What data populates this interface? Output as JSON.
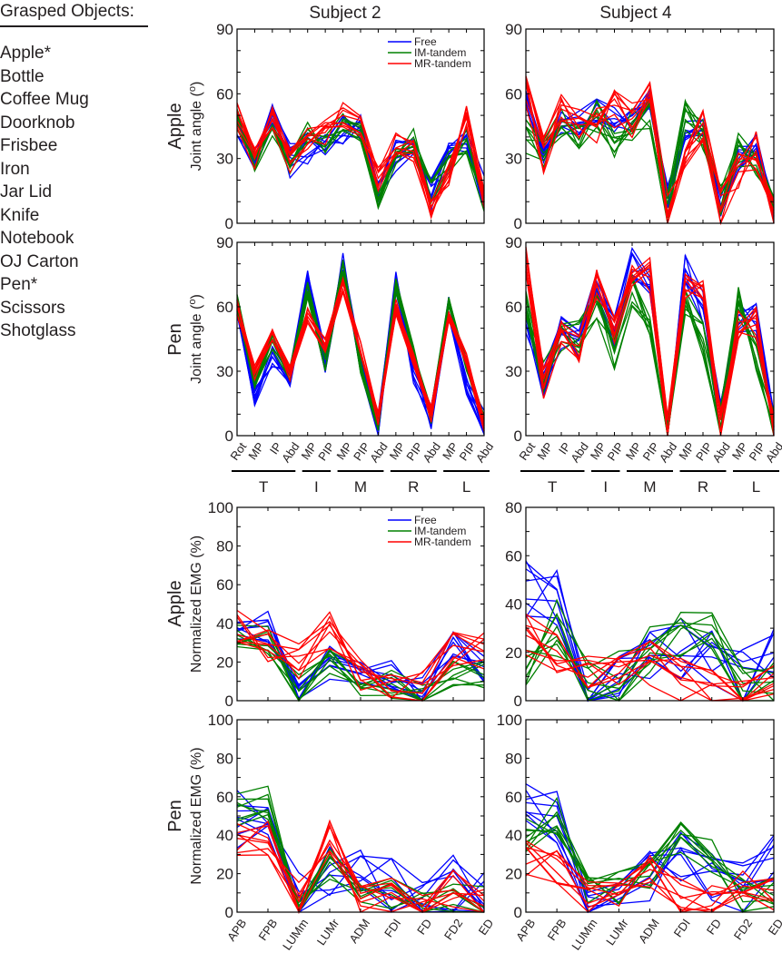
{
  "grasped_objects": {
    "title": "Grasped Objects:",
    "items": [
      "Apple*",
      "Bottle",
      "Coffee Mug",
      "Doorknob",
      "Frisbee",
      "Iron",
      "Jar Lid",
      "Knife",
      "Notebook",
      "OJ Carton",
      "Pen*",
      "Scissors",
      "Shotglass"
    ]
  },
  "columns": [
    "Subject 2",
    "Subject 4"
  ],
  "rows": [
    "Apple",
    "Pen",
    "Apple",
    "Pen"
  ],
  "legend": {
    "entries": [
      "Free",
      "IM-tandem",
      "MR-tandem"
    ],
    "placement": "top-right of Subject 2 Apple panels"
  },
  "colors": {
    "Free": "#0000ff",
    "IM-tandem": "#008000",
    "MR-tandem": "#ff0000"
  },
  "joint_groups": [
    {
      "label": "T",
      "from": 0,
      "to": 3
    },
    {
      "label": "I",
      "from": 4,
      "to": 5
    },
    {
      "label": "M",
      "from": 6,
      "to": 8
    },
    {
      "label": "R",
      "from": 9,
      "to": 11
    },
    {
      "label": "L",
      "from": 12,
      "to": 14
    }
  ],
  "chart_data": [
    {
      "type": "line",
      "subject": "Subject 2",
      "object": "Apple",
      "ylabel": "Joint angle (o)",
      "ylim": [
        0,
        90
      ],
      "yticks": [
        0,
        30,
        60,
        90
      ],
      "minor_step": 10,
      "categories": [
        "Rot",
        "MP",
        "IP",
        "Abd",
        "MP",
        "PIP",
        "MP",
        "PIP",
        "Abd",
        "MP",
        "PIP",
        "Abd",
        "MP",
        "PIP",
        "Abd"
      ],
      "show_xlabels": false,
      "legend": true,
      "trials_per_condition": 8,
      "series": [
        {
          "name": "Free",
          "mean": [
            45,
            31,
            50,
            29,
            34,
            38,
            42,
            44,
            14,
            32,
            35,
            14,
            30,
            38,
            14
          ],
          "spread": 8
        },
        {
          "name": "IM-tandem",
          "mean": [
            47,
            27,
            46,
            29,
            42,
            35,
            45,
            44,
            9,
            32,
            38,
            14,
            28,
            38,
            10
          ],
          "spread": 6
        },
        {
          "name": "MR-tandem",
          "mean": [
            50,
            30,
            48,
            29,
            40,
            42,
            50,
            46,
            20,
            36,
            34,
            8,
            22,
            50,
            12
          ],
          "spread": 6
        }
      ]
    },
    {
      "type": "line",
      "subject": "Subject 4",
      "object": "Apple",
      "ylabel": "",
      "ylim": [
        0,
        90
      ],
      "yticks": [
        0,
        30,
        60,
        90
      ],
      "minor_step": 10,
      "categories": [
        "Rot",
        "MP",
        "IP",
        "Abd",
        "MP",
        "PIP",
        "MP",
        "PIP",
        "Abd",
        "MP",
        "PIP",
        "Abd",
        "MP",
        "PIP",
        "Abd"
      ],
      "show_xlabels": false,
      "legend": false,
      "trials_per_condition": 8,
      "series": [
        {
          "name": "Free",
          "mean": [
            58,
            30,
            46,
            47,
            52,
            48,
            48,
            58,
            12,
            42,
            44,
            8,
            30,
            36,
            6
          ],
          "spread": 6
        },
        {
          "name": "IM-tandem",
          "mean": [
            40,
            32,
            48,
            40,
            50,
            38,
            46,
            50,
            6,
            50,
            42,
            10,
            34,
            30,
            6
          ],
          "spread": 8
        },
        {
          "name": "MR-tandem",
          "mean": [
            60,
            32,
            52,
            44,
            44,
            52,
            48,
            60,
            5,
            36,
            48,
            6,
            24,
            34,
            5
          ],
          "spread": 10
        }
      ]
    },
    {
      "type": "line",
      "subject": "Subject 2",
      "object": "Pen",
      "ylabel": "Joint angle (o)",
      "ylim": [
        0,
        90
      ],
      "yticks": [
        0,
        30,
        60,
        90
      ],
      "minor_step": 10,
      "categories": [
        "Rot",
        "MP",
        "IP",
        "Abd",
        "MP",
        "PIP",
        "MP",
        "PIP",
        "Abd",
        "MP",
        "PIP",
        "Abd",
        "MP",
        "PIP",
        "Abd"
      ],
      "show_xlabels": true,
      "legend": false,
      "trials_per_condition": 8,
      "series": [
        {
          "name": "Free",
          "mean": [
            58,
            18,
            36,
            29,
            72,
            35,
            80,
            35,
            6,
            72,
            30,
            9,
            60,
            25,
            6
          ],
          "spread": 6
        },
        {
          "name": "IM-tandem",
          "mean": [
            62,
            24,
            44,
            29,
            68,
            33,
            78,
            33,
            6,
            70,
            38,
            9,
            62,
            32,
            6
          ],
          "spread": 4
        },
        {
          "name": "MR-tandem",
          "mean": [
            60,
            30,
            48,
            29,
            56,
            42,
            70,
            40,
            8,
            60,
            35,
            10,
            54,
            35,
            6
          ],
          "spread": 4
        }
      ]
    },
    {
      "type": "line",
      "subject": "Subject 4",
      "object": "Pen",
      "ylabel": "",
      "ylim": [
        0,
        90
      ],
      "yticks": [
        0,
        30,
        60,
        90
      ],
      "minor_step": 10,
      "categories": [
        "Rot",
        "MP",
        "IP",
        "Abd",
        "MP",
        "PIP",
        "MP",
        "PIP",
        "Abd",
        "MP",
        "PIP",
        "Abd",
        "MP",
        "PIP",
        "Abd"
      ],
      "show_xlabels": true,
      "legend": false,
      "trials_per_condition": 8,
      "series": [
        {
          "name": "Free",
          "mean": [
            55,
            25,
            48,
            44,
            70,
            48,
            80,
            70,
            6,
            78,
            60,
            8,
            55,
            55,
            4
          ],
          "spread": 8
        },
        {
          "name": "IM-tandem",
          "mean": [
            62,
            28,
            44,
            46,
            62,
            38,
            68,
            48,
            6,
            62,
            45,
            8,
            62,
            38,
            4
          ],
          "spread": 8
        },
        {
          "name": "MR-tandem",
          "mean": [
            80,
            25,
            46,
            42,
            72,
            50,
            76,
            75,
            4,
            70,
            65,
            6,
            50,
            52,
            4
          ],
          "spread": 8
        }
      ]
    },
    {
      "type": "line",
      "subject": "Subject 2",
      "object": "Apple",
      "ylabel": "Normalized EMG (%)",
      "ylim": [
        0,
        100
      ],
      "yticks": [
        0,
        20,
        40,
        60,
        80,
        100
      ],
      "minor_step": 10,
      "categories": [
        "APB",
        "FPB",
        "LUMm",
        "LUMr",
        "ADM",
        "FDI",
        "FD",
        "FD2",
        "ED"
      ],
      "show_xlabels": false,
      "legend": true,
      "trials_per_condition": 8,
      "series": [
        {
          "name": "Free",
          "mean": [
            35,
            38,
            4,
            20,
            18,
            12,
            6,
            28,
            14
          ],
          "spread": 9
        },
        {
          "name": "IM-tandem",
          "mean": [
            35,
            32,
            6,
            20,
            10,
            8,
            2,
            14,
            14
          ],
          "spread": 8
        },
        {
          "name": "MR-tandem",
          "mean": [
            38,
            30,
            20,
            36,
            12,
            8,
            5,
            26,
            26
          ],
          "spread": 10
        }
      ]
    },
    {
      "type": "line",
      "subject": "Subject 4",
      "object": "Apple",
      "ylabel": "",
      "ylim": [
        0,
        80
      ],
      "yticks": [
        0,
        20,
        40,
        60,
        80
      ],
      "minor_step": 10,
      "categories": [
        "APB",
        "FPB",
        "LUMm",
        "LUMr",
        "ADM",
        "FDI",
        "FD",
        "FD2",
        "ED"
      ],
      "show_xlabels": false,
      "legend": false,
      "trials_per_condition": 8,
      "series": [
        {
          "name": "Free",
          "mean": [
            45,
            45,
            3,
            5,
            22,
            22,
            18,
            8,
            18
          ],
          "spread": 14
        },
        {
          "name": "IM-tandem",
          "mean": [
            18,
            30,
            8,
            10,
            20,
            30,
            26,
            2,
            5
          ],
          "spread": 12
        },
        {
          "name": "MR-tandem",
          "mean": [
            28,
            20,
            10,
            10,
            16,
            8,
            6,
            1,
            8
          ],
          "spread": 10
        }
      ]
    },
    {
      "type": "line",
      "subject": "Subject 2",
      "object": "Pen",
      "ylabel": "Normalized EMG (%)",
      "ylim": [
        0,
        100
      ],
      "yticks": [
        0,
        20,
        40,
        60,
        80,
        100
      ],
      "minor_step": 10,
      "categories": [
        "APB",
        "FPB",
        "LUMm",
        "LUMr",
        "ADM",
        "FDI",
        "FD",
        "FD2",
        "ED"
      ],
      "show_xlabels": true,
      "legend": false,
      "trials_per_condition": 8,
      "series": [
        {
          "name": "Free",
          "mean": [
            48,
            55,
            8,
            22,
            18,
            12,
            3,
            14,
            9
          ],
          "spread": 16
        },
        {
          "name": "IM-tandem",
          "mean": [
            55,
            58,
            3,
            25,
            10,
            10,
            2,
            8,
            4
          ],
          "spread": 10
        },
        {
          "name": "MR-tandem",
          "mean": [
            36,
            38,
            8,
            40,
            8,
            8,
            2,
            12,
            3
          ],
          "spread": 10
        }
      ]
    },
    {
      "type": "line",
      "subject": "Subject 4",
      "object": "Pen",
      "ylabel": "",
      "ylim": [
        0,
        100
      ],
      "yticks": [
        0,
        20,
        40,
        60,
        80,
        100
      ],
      "minor_step": 10,
      "categories": [
        "APB",
        "FPB",
        "LUMm",
        "LUMr",
        "ADM",
        "FDI",
        "FD",
        "FD2",
        "ED"
      ],
      "show_xlabels": true,
      "legend": false,
      "trials_per_condition": 8,
      "series": [
        {
          "name": "Free",
          "mean": [
            60,
            50,
            4,
            8,
            18,
            28,
            20,
            12,
            26
          ],
          "spread": 14
        },
        {
          "name": "IM-tandem",
          "mean": [
            40,
            50,
            12,
            12,
            18,
            38,
            30,
            8,
            8
          ],
          "spread": 10
        },
        {
          "name": "MR-tandem",
          "mean": [
            28,
            24,
            10,
            10,
            20,
            8,
            4,
            18,
            8
          ],
          "spread": 10
        }
      ]
    }
  ]
}
